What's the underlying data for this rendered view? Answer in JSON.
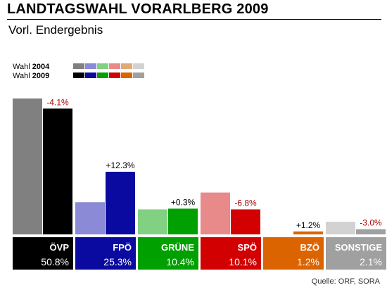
{
  "header": {
    "title": "LANDTAGSWAHL VORARLBERG 2009",
    "subtitle": "Vorl. Endergebnis"
  },
  "legend": {
    "entries": [
      {
        "prefix": "Wahl ",
        "year": "2004",
        "colors": [
          "#808080",
          "#8a8ad6",
          "#82d082",
          "#e98a8a",
          "#e0aa78",
          "#d2d2d2"
        ]
      },
      {
        "prefix": "Wahl ",
        "year": "2009",
        "colors": [
          "#000000",
          "#0a0aa0",
          "#00a000",
          "#d20000",
          "#dc6400",
          "#a0a0a0"
        ]
      }
    ]
  },
  "source": "Quelle: ORF, SORA",
  "chart_data": {
    "type": "bar",
    "categories": [
      "ÖVP",
      "FPÖ",
      "GRÜNE",
      "SPÖ",
      "BZÖ",
      "SONSTIGE"
    ],
    "series": [
      {
        "name": "Wahl 2004",
        "values": [
          54.9,
          13.0,
          10.1,
          16.9,
          0.0,
          5.1
        ],
        "colors": [
          "#808080",
          "#8a8ad6",
          "#82d082",
          "#e98a8a",
          "#e0aa78",
          "#d2d2d2"
        ]
      },
      {
        "name": "Wahl 2009",
        "values": [
          50.8,
          25.3,
          10.4,
          10.1,
          1.2,
          2.1
        ],
        "colors": [
          "#000000",
          "#0a0aa0",
          "#00a000",
          "#d20000",
          "#dc6400",
          "#a0a0a0"
        ]
      }
    ],
    "value_labels": [
      "50.8%",
      "25.3%",
      "10.4%",
      "10.1%",
      "1.2%",
      "2.1%"
    ],
    "changes": [
      "-4.1%",
      "+12.3%",
      "+0.3%",
      "-6.8%",
      "+1.2%",
      "-3.0%"
    ],
    "change_colors": [
      "#b00000",
      "#000000",
      "#000000",
      "#b00000",
      "#000000",
      "#b00000"
    ],
    "ylim": [
      0,
      56
    ],
    "grid": false,
    "legend_position": "top-left"
  }
}
